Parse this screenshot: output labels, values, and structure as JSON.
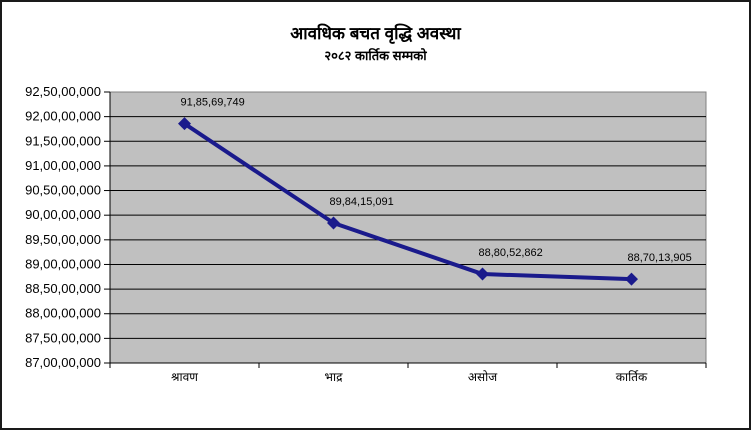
{
  "chart_data": {
    "type": "line",
    "title": "आवधिक बचत वृद्धि अवस्था",
    "subtitle": "२०८२ कार्तिक सम्मको",
    "categories": [
      "श्रावण",
      "भाद्र",
      "असोज",
      "कार्तिक"
    ],
    "values": [
      918569749,
      898415091,
      888052862,
      887013905
    ],
    "data_labels": [
      "91,85,69,749",
      "89,84,15,091",
      "88,80,52,862",
      "88,70,13,905"
    ],
    "y_tick_labels": [
      "92,50,00,000",
      "92,00,00,000",
      "91,50,00,000",
      "91,00,00,000",
      "90,50,00,000",
      "90,00,00,000",
      "89,50,00,000",
      "89,00,00,000",
      "88,50,00,000",
      "88,00,00,000",
      "87,50,00,000",
      "87,00,00,000"
    ],
    "ylim": [
      870000000,
      925000000
    ],
    "y_step": 5000000,
    "xlabel": "",
    "ylabel": "",
    "grid": true,
    "legend": false,
    "colors": {
      "series_line": "#1A1A8C",
      "marker": "#1A1A8C",
      "plot_bg": "#C0C0C0",
      "plot_border": "#808080",
      "gridline": "#000000",
      "axis": "#000000",
      "text": "#000000",
      "chart_bg": "#FFFFFF"
    }
  }
}
